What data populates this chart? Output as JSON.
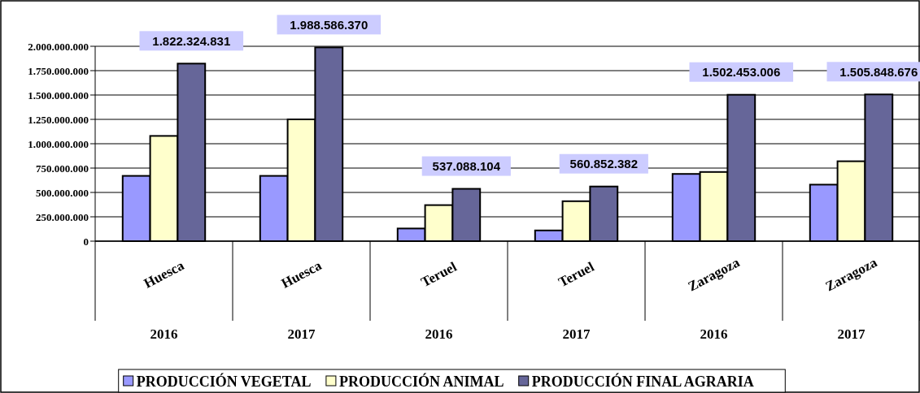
{
  "chart_data": {
    "type": "bar",
    "categories": [
      "Huesca\n2016",
      "Huesca\n2017",
      "Teruel\n2016",
      "Teruel\n2017",
      "Zaragoza\n2016",
      "Zaragoza\n2017"
    ],
    "series": [
      {
        "name": "PRODUCCIÓN VEGETAL",
        "color": "#9999ff",
        "values": [
          670000000,
          670000000,
          130000000,
          110000000,
          690000000,
          580000000
        ]
      },
      {
        "name": "PRODUCCIÓN ANIMAL",
        "color": "#ffffcc",
        "values": [
          1080000000,
          1250000000,
          370000000,
          410000000,
          710000000,
          820000000
        ]
      },
      {
        "name": "PRODUCCIÓN FINAL AGRARIA",
        "color": "#666699",
        "values": [
          1822324831,
          1988586370,
          537088104,
          560852382,
          1502453006,
          1505848676
        ],
        "value_labels": [
          "1.822.324.831",
          "1.988.586.370",
          "537.088.104",
          "560.852.382",
          "1.502.453.006",
          "1.505.848.676"
        ]
      }
    ],
    "ylim": [
      0,
      2000000000
    ],
    "yticks": [
      {
        "value": 0,
        "label": "0"
      },
      {
        "value": 250000000,
        "label": "250.000.000"
      },
      {
        "value": 500000000,
        "label": "500.000.000"
      },
      {
        "value": 750000000,
        "label": "750.000.000"
      },
      {
        "value": 1000000000,
        "label": "1.000.000.000"
      },
      {
        "value": 1250000000,
        "label": "1.250.000.000"
      },
      {
        "value": 1500000000,
        "label": "1.500.000.000"
      },
      {
        "value": 1750000000,
        "label": "1.750.000.000"
      },
      {
        "value": 2000000000,
        "label": "2.000.000.000"
      }
    ],
    "grid": "y",
    "legend": "bottom"
  }
}
